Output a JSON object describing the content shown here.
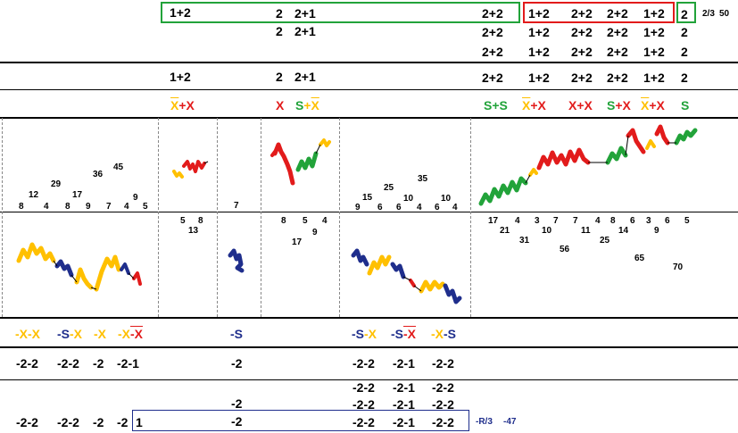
{
  "top": {
    "row1_left": "1+2",
    "row1_mid_a": "2",
    "row1_mid_b": "2+1",
    "row1_right_a": "2+2",
    "red": [
      "1+2",
      "2+2",
      "2+2",
      "1+2"
    ],
    "green_end": "2",
    "note_frac": "2/3",
    "note_num": "50",
    "row2_mid_a": "2",
    "row2_mid_b": "2+1",
    "row2_right": [
      "2+2",
      "1+2",
      "2+2",
      "2+2",
      "1+2",
      "2"
    ],
    "row3_right": [
      "2+2",
      "1+2",
      "2+2",
      "2+2",
      "1+2",
      "2"
    ]
  },
  "summary_row": {
    "a": "1+2",
    "b": "2",
    "c": "2+1",
    "right": [
      "2+2",
      "1+2",
      "2+2",
      "2+2",
      "1+2",
      "2"
    ]
  },
  "color_row": {
    "c1_x": "X",
    "c1_plus": "+",
    "c1_x2": "X",
    "c2_x": "X",
    "c3_s": "S",
    "c3_plus": "+",
    "c3_x": "X",
    "c4_s": "S",
    "c4_plus": "+",
    "c4_s2": "S",
    "c5_x": "X",
    "c5_plus": "+",
    "c5_x2": "X",
    "c6_x": "X",
    "c6_plus": "+",
    "c6_x2": "X",
    "c7_s": "S",
    "c7_plus": "+",
    "c7_x": "X",
    "c8_x": "X",
    "c8_plus": "+",
    "c8_x2": "X",
    "c9_s": "S"
  },
  "upper_numbers": {
    "p1": [
      "8",
      "12",
      "4",
      "29",
      "8",
      "17",
      "9",
      "36",
      "7",
      "45",
      "4",
      "9",
      "5"
    ],
    "p2_below": [
      "5",
      "8",
      "13"
    ],
    "p3_below": [
      "7"
    ],
    "p4_below": [
      "8",
      "5",
      "4",
      "17",
      "9"
    ],
    "p5": [
      "9",
      "15",
      "6",
      "25",
      "6",
      "10",
      "4",
      "35",
      "6",
      "10",
      "4"
    ],
    "p6_below": [
      "17",
      "4",
      "21",
      "31",
      "3",
      "7",
      "10",
      "7",
      "4",
      "11",
      "8",
      "25",
      "6",
      "14",
      "3",
      "9",
      "6",
      "5",
      "56",
      "65",
      "70"
    ]
  },
  "lower_labels": {
    "l1": [
      {
        "a": "-X",
        "b": "-X",
        "ca": "y",
        "cb": "y"
      },
      {
        "a": "-S",
        "b": "-X",
        "ca": "b",
        "cb": "y"
      },
      {
        "a": "-X",
        "b": "",
        "ca": "y",
        "cb": "y"
      },
      {
        "a": "-X",
        "b": "-X",
        "ca": "y",
        "cb": "r"
      }
    ],
    "l2": "-S",
    "l3": [
      {
        "a": "-S",
        "b": "-X",
        "ca": "b",
        "cb": "y"
      },
      {
        "a": "-S",
        "b": "-X",
        "ca": "b",
        "cb": "r"
      },
      {
        "a": "-X",
        "b": "-S",
        "ca": "y",
        "cb": "b"
      }
    ]
  },
  "bottom": {
    "rowA_left": [
      "-2-2",
      "-2-2",
      "-2",
      "-2-1"
    ],
    "rowA_mid": "-2",
    "rowA_right": [
      "-2-2",
      "-2-1",
      "-2-2"
    ],
    "rowB_right": [
      "-2-2",
      "-2-1",
      "-2-2"
    ],
    "rowC_mid": "-2",
    "rowC_right": [
      "-2-2",
      "-2-1",
      "-2-2"
    ],
    "rowD_left": [
      "-2-2",
      "-2-2",
      "-2",
      "-2"
    ],
    "rowD_boxed": "1",
    "rowD_mid": "-2",
    "rowD_right": [
      "-2-2",
      "-2-1",
      "-2-2"
    ],
    "note_r": "-R/3",
    "note_n": "-47"
  },
  "colors": {
    "yellow": "#FFC000",
    "red": "#E21B1B",
    "green": "#22A33A",
    "navy": "#1F2E8C"
  }
}
